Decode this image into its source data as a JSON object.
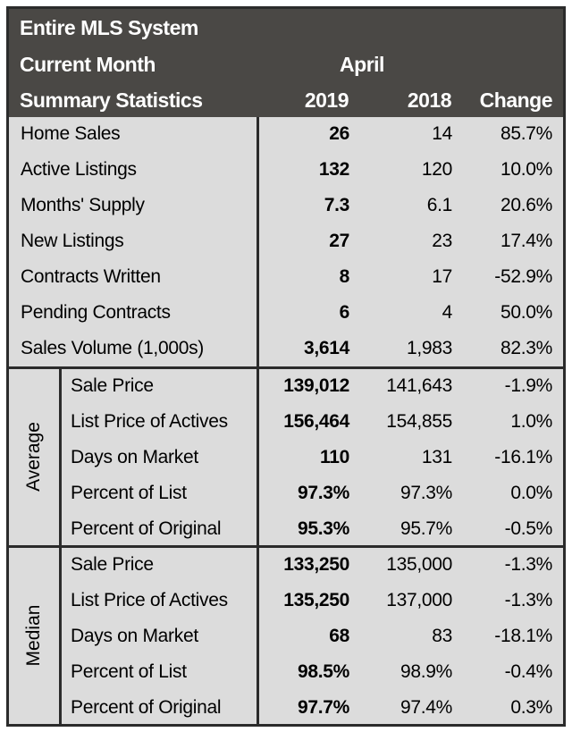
{
  "header": {
    "title": "Entire MLS System",
    "current_month_label": "Current Month",
    "month": "April",
    "summary_label": "Summary Statistics",
    "col_2019": "2019",
    "col_2018": "2018",
    "col_change": "Change"
  },
  "summary_rows": [
    {
      "label": "Home Sales",
      "v2019": "26",
      "v2018": "14",
      "change": "85.7%"
    },
    {
      "label": "Active Listings",
      "v2019": "132",
      "v2018": "120",
      "change": "10.0%"
    },
    {
      "label": "Months' Supply",
      "v2019": "7.3",
      "v2018": "6.1",
      "change": "20.6%"
    },
    {
      "label": "New Listings",
      "v2019": "27",
      "v2018": "23",
      "change": "17.4%"
    },
    {
      "label": "Contracts Written",
      "v2019": "8",
      "v2018": "17",
      "change": "-52.9%"
    },
    {
      "label": "Pending Contracts",
      "v2019": "6",
      "v2018": "4",
      "change": "50.0%"
    },
    {
      "label": "Sales Volume (1,000s)",
      "v2019": "3,614",
      "v2018": "1,983",
      "change": "82.3%"
    }
  ],
  "average": {
    "group_label": "Average",
    "rows": [
      {
        "label": "Sale Price",
        "v2019": "139,012",
        "v2018": "141,643",
        "change": "-1.9%"
      },
      {
        "label": "List Price of Actives",
        "v2019": "156,464",
        "v2018": "154,855",
        "change": "1.0%"
      },
      {
        "label": "Days on Market",
        "v2019": "110",
        "v2018": "131",
        "change": "-16.1%"
      },
      {
        "label": "Percent of List",
        "v2019": "97.3%",
        "v2018": "97.3%",
        "change": "0.0%"
      },
      {
        "label": "Percent of Original",
        "v2019": "95.3%",
        "v2018": "95.7%",
        "change": "-0.5%"
      }
    ]
  },
  "median": {
    "group_label": "Median",
    "rows": [
      {
        "label": "Sale Price",
        "v2019": "133,250",
        "v2018": "135,000",
        "change": "-1.3%"
      },
      {
        "label": "List Price of Actives",
        "v2019": "135,250",
        "v2018": "137,000",
        "change": "-1.3%"
      },
      {
        "label": "Days on Market",
        "v2019": "68",
        "v2018": "83",
        "change": "-18.1%"
      },
      {
        "label": "Percent of List",
        "v2019": "98.5%",
        "v2018": "98.9%",
        "change": "-0.4%"
      },
      {
        "label": "Percent of Original",
        "v2019": "97.7%",
        "v2018": "97.4%",
        "change": "0.3%"
      }
    ]
  },
  "colors": {
    "header_bg": "#4a4845",
    "body_bg": "#dcdcdc",
    "rule": "#2b2b2b",
    "header_text": "#ffffff"
  }
}
